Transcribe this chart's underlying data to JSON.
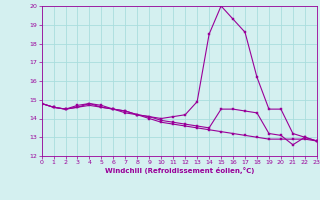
{
  "line1_x": [
    0,
    1,
    2,
    3,
    4,
    5,
    6,
    7,
    8,
    9,
    10,
    11,
    12,
    13,
    14,
    15,
    16,
    17,
    18,
    19,
    20,
    21,
    22,
    23
  ],
  "line1_y": [
    14.8,
    14.6,
    14.5,
    14.6,
    14.7,
    14.6,
    14.5,
    14.3,
    14.2,
    14.1,
    14.0,
    14.1,
    14.2,
    14.9,
    18.5,
    20.0,
    19.3,
    18.6,
    16.2,
    14.5,
    14.5,
    13.2,
    13.0,
    12.8
  ],
  "line2_x": [
    0,
    1,
    2,
    3,
    4,
    5,
    6,
    7,
    8,
    9,
    10,
    11,
    12,
    13,
    14,
    15,
    16,
    17,
    18,
    19,
    20,
    21,
    22,
    23
  ],
  "line2_y": [
    14.8,
    14.6,
    14.5,
    14.6,
    14.8,
    14.6,
    14.5,
    14.4,
    14.2,
    14.1,
    13.9,
    13.8,
    13.7,
    13.6,
    13.5,
    14.5,
    14.5,
    14.4,
    14.3,
    13.2,
    13.1,
    12.6,
    13.0,
    12.8
  ],
  "line3_x": [
    0,
    1,
    2,
    3,
    4,
    5,
    6,
    7,
    8,
    9,
    10,
    11,
    12,
    13,
    14,
    15,
    16,
    17,
    18,
    19,
    20,
    21,
    22,
    23
  ],
  "line3_y": [
    14.8,
    14.6,
    14.5,
    14.7,
    14.8,
    14.7,
    14.5,
    14.4,
    14.2,
    14.0,
    13.8,
    13.7,
    13.6,
    13.5,
    13.4,
    13.3,
    13.2,
    13.1,
    13.0,
    12.9,
    12.9,
    12.9,
    12.9,
    12.8
  ],
  "line_color": "#990099",
  "bg_color": "#d4f0f0",
  "grid_color": "#aadddd",
  "xlabel": "Windchill (Refroidissement éolien,°C)",
  "xlim": [
    0,
    23
  ],
  "ylim": [
    12,
    20
  ],
  "yticks": [
    12,
    13,
    14,
    15,
    16,
    17,
    18,
    19,
    20
  ],
  "xticks": [
    0,
    1,
    2,
    3,
    4,
    5,
    6,
    7,
    8,
    9,
    10,
    11,
    12,
    13,
    14,
    15,
    16,
    17,
    18,
    19,
    20,
    21,
    22,
    23
  ],
  "tick_fontsize": 4.5,
  "xlabel_fontsize": 5.0,
  "marker_size": 1.5,
  "line_width": 0.8
}
